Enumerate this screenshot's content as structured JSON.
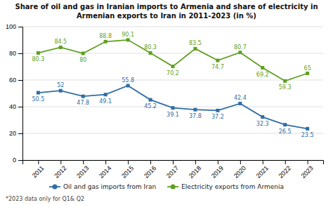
{
  "chart_data": {
    "type": "line",
    "title": "Share of oil and gas in Iranian imports to Armenia and share of electricity in\nArmenian exports to Iran in 2011-2023 (in %)",
    "footnote": "*2023 data only for Q1& Q2",
    "x": [
      2011,
      2012,
      2013,
      2014,
      2015,
      2016,
      2017,
      2018,
      2019,
      2020,
      2021,
      2022,
      2023
    ],
    "series": [
      {
        "name": "Oil and gas imports from Iran",
        "color": "#2e6da4",
        "values": [
          50.5,
          52,
          47.8,
          49.1,
          55.8,
          45.2,
          39.1,
          37.8,
          37.2,
          42.4,
          32.3,
          26.5,
          23.5
        ]
      },
      {
        "name": "Electricity exports from Armenia",
        "color": "#5fa020",
        "values": [
          80.3,
          84.5,
          80,
          88.8,
          90.1,
          80.3,
          70.2,
          83.5,
          74.7,
          80.7,
          69.2,
          59.3,
          65
        ]
      }
    ],
    "xlim": [
      2010.3,
      2023.7
    ],
    "xticks": [
      2011,
      2012,
      2013,
      2014,
      2015,
      2016,
      2017,
      2018,
      2019,
      2020,
      2021,
      2022,
      2023
    ],
    "ylim": [
      0,
      100
    ],
    "yticks": [
      0,
      20,
      40,
      60,
      80,
      100
    ],
    "grid": true,
    "legend": "bottom",
    "data_labels": true,
    "marker": "square"
  }
}
